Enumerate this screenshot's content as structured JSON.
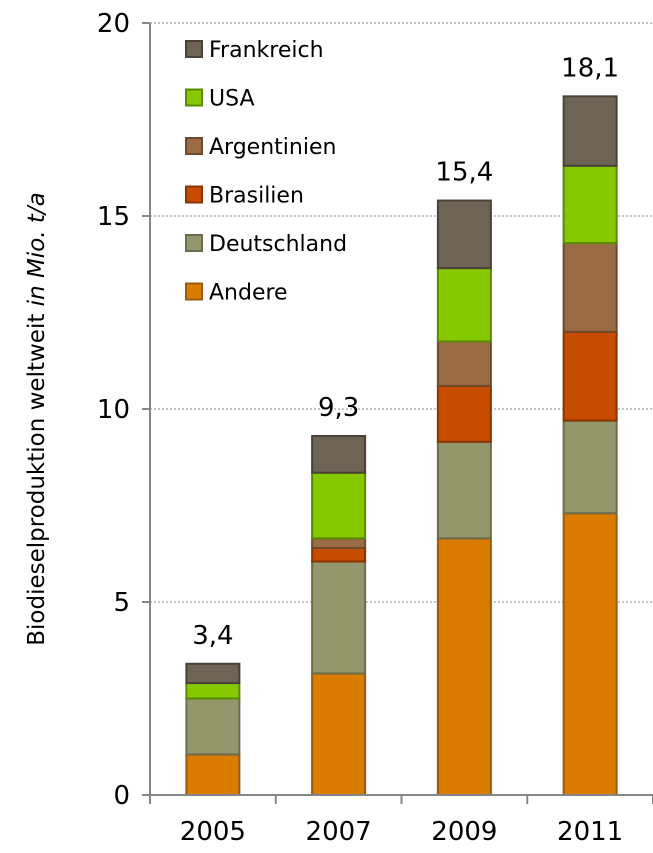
{
  "chart_data": {
    "type": "bar",
    "stacked": true,
    "categories": [
      "2005",
      "2007",
      "2009",
      "2011"
    ],
    "series": [
      {
        "name": "Andere",
        "color": "#d97c00",
        "stroke": "#9a5a10",
        "values": [
          1.05,
          3.15,
          6.65,
          7.3
        ]
      },
      {
        "name": "Deutschland",
        "color": "#94966b",
        "stroke": "#6b6d4c",
        "values": [
          1.45,
          2.9,
          2.5,
          2.4
        ]
      },
      {
        "name": "Brasilien",
        "color": "#c64d00",
        "stroke": "#8a3400",
        "values": [
          0.0,
          0.35,
          1.45,
          2.3
        ]
      },
      {
        "name": "Argentinien",
        "color": "#9b6b45",
        "stroke": "#6e4a2e",
        "values": [
          0.0,
          0.25,
          1.15,
          2.3
        ]
      },
      {
        "name": "USA",
        "color": "#86c900",
        "stroke": "#5a8a00",
        "values": [
          0.4,
          1.7,
          1.9,
          2.0
        ]
      },
      {
        "name": "Frankreich",
        "color": "#6e6456",
        "stroke": "#4a4238",
        "values": [
          0.5,
          0.95,
          1.75,
          1.8
        ]
      }
    ],
    "totals": [
      "3,4",
      "9,3",
      "15,4",
      "18,1"
    ],
    "ylim": [
      0,
      20
    ],
    "yticks": [
      0,
      5,
      10,
      15,
      20
    ],
    "grid": "horizontal dashed",
    "legend_position": "top-left",
    "ylabel_parts": [
      "Biodieselproduktion weltweit ",
      "in Mio. t/a"
    ]
  }
}
